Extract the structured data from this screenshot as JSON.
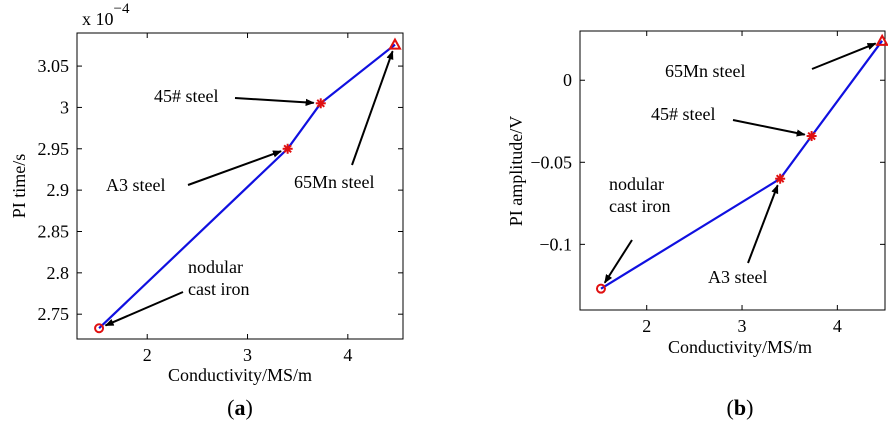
{
  "chart_data": [
    {
      "type": "line",
      "panel": "a",
      "caption_open": "(",
      "caption_letter": "a",
      "caption_close": ")",
      "xlabel": "Conductivity/MS/m",
      "ylabel": "PI time/s",
      "exponent_label_base": "x 10",
      "exponent_label_power": "−4",
      "xlim": [
        1.3,
        4.55
      ],
      "ylim": [
        2.72,
        3.09
      ],
      "xticks": [
        2,
        3,
        4
      ],
      "yticks": [
        2.75,
        2.8,
        2.85,
        2.9,
        2.95,
        3.0,
        3.05
      ],
      "ytick_labels": [
        "2.75",
        "2.8",
        "2.85",
        "2.9",
        "2.95",
        "3",
        "3.05"
      ],
      "line_color": "#1010e0",
      "marker_color": "#e01010",
      "points": [
        {
          "x": 1.52,
          "y": 2.733,
          "marker": "circle",
          "label": [
            "nodular",
            "cast iron"
          ]
        },
        {
          "x": 3.4,
          "y": 2.95,
          "marker": "star",
          "label": [
            "A3 steel"
          ]
        },
        {
          "x": 3.73,
          "y": 3.005,
          "marker": "star",
          "label": [
            "45# steel"
          ]
        },
        {
          "x": 4.47,
          "y": 3.076,
          "marker": "triangle",
          "label": [
            "65Mn steel"
          ]
        }
      ]
    },
    {
      "type": "line",
      "panel": "b",
      "caption_open": "(",
      "caption_letter": "b",
      "caption_close": ")",
      "xlabel": "Conductivity/MS/m",
      "ylabel": "PI amplitude/V",
      "xlim": [
        1.3,
        4.5
      ],
      "ylim": [
        -0.14,
        0.03
      ],
      "xticks": [
        2,
        3,
        4
      ],
      "yticks": [
        -0.1,
        -0.05,
        0
      ],
      "ytick_labels": [
        "−0.1",
        "−0.05",
        "0"
      ],
      "line_color": "#1010e0",
      "marker_color": "#e01010",
      "points": [
        {
          "x": 1.52,
          "y": -0.127,
          "marker": "circle",
          "label": [
            "nodular",
            "cast iron"
          ]
        },
        {
          "x": 3.4,
          "y": -0.06,
          "marker": "star",
          "label": [
            "A3 steel"
          ]
        },
        {
          "x": 3.73,
          "y": -0.034,
          "marker": "star",
          "label": [
            "45# steel"
          ]
        },
        {
          "x": 4.47,
          "y": 0.024,
          "marker": "triangle",
          "label": [
            "65Mn steel"
          ]
        }
      ]
    }
  ]
}
